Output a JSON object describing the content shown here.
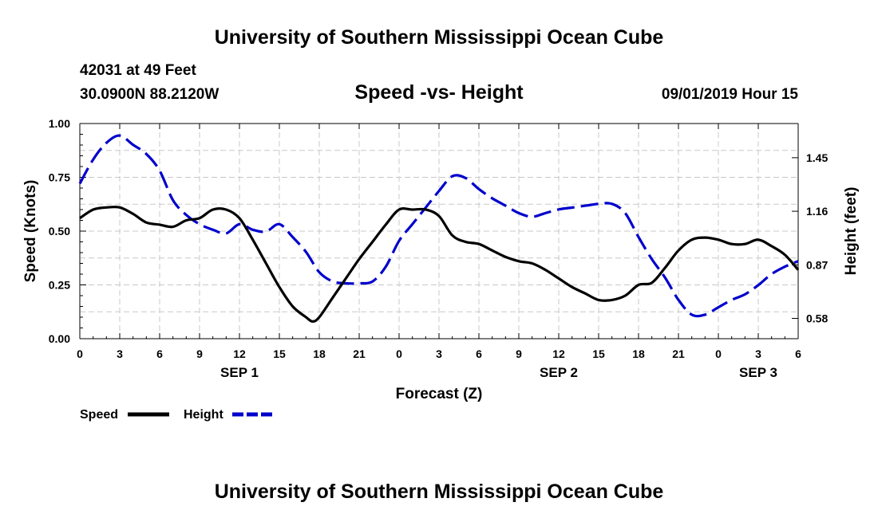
{
  "header": {
    "title": "University of Southern Mississippi Ocean Cube",
    "station_line": "42031 at 49 Feet",
    "location_line": "30.0900N 88.2120W",
    "date_line": "09/01/2019 Hour 15",
    "footer_title": "University of Southern Mississippi Ocean Cube"
  },
  "chart_data": {
    "type": "line",
    "title": "Speed -vs- Height",
    "xlabel": "Forecast (Z)",
    "ylabel": "Speed (Knots)",
    "y2label": "Height (feet)",
    "x_ticks": [
      "0",
      "3",
      "6",
      "9",
      "12",
      "15",
      "18",
      "21",
      "0",
      "3",
      "6",
      "9",
      "12",
      "15",
      "18",
      "21",
      "0",
      "3",
      "6"
    ],
    "x_range_hours": [
      0,
      54
    ],
    "day_labels": [
      {
        "label": "SEP 1",
        "hour": 12
      },
      {
        "label": "SEP 2",
        "hour": 36
      },
      {
        "label": "SEP 3",
        "hour": 51
      }
    ],
    "ylim": [
      0,
      1
    ],
    "y_ticks": [
      "0.00",
      "0.25",
      "0.50",
      "0.75",
      "1.00"
    ],
    "y_tick_values": [
      0,
      0.25,
      0.5,
      0.75,
      1.0
    ],
    "y2lim": [
      0.47,
      1.635
    ],
    "y2_ticks": [
      "0.58",
      "0.87",
      "1.16",
      "1.45"
    ],
    "y2_tick_values": [
      0.58,
      0.87,
      1.16,
      1.45
    ],
    "grid": true,
    "series": [
      {
        "name": "Speed",
        "axis": "left",
        "color": "#000000",
        "style": "solid",
        "x": [
          0,
          1,
          2,
          3,
          4,
          5,
          6,
          7,
          8,
          9,
          10,
          11,
          12,
          13,
          14,
          15,
          16,
          17,
          17.5,
          18,
          19,
          20,
          21,
          22,
          23,
          24,
          25,
          26,
          27,
          28,
          29,
          30,
          31,
          32,
          33,
          34,
          35,
          36,
          37,
          38,
          39,
          40,
          41,
          42,
          43,
          44,
          45,
          46,
          47,
          48,
          49,
          50,
          51,
          52,
          53,
          54
        ],
        "values": [
          0.56,
          0.6,
          0.61,
          0.61,
          0.58,
          0.54,
          0.53,
          0.52,
          0.55,
          0.56,
          0.6,
          0.6,
          0.56,
          0.46,
          0.35,
          0.24,
          0.15,
          0.1,
          0.08,
          0.1,
          0.19,
          0.28,
          0.37,
          0.45,
          0.53,
          0.6,
          0.6,
          0.6,
          0.57,
          0.48,
          0.45,
          0.44,
          0.41,
          0.38,
          0.36,
          0.35,
          0.32,
          0.28,
          0.24,
          0.21,
          0.18,
          0.18,
          0.2,
          0.25,
          0.26,
          0.33,
          0.41,
          0.46,
          0.47,
          0.46,
          0.44,
          0.44,
          0.46,
          0.43,
          0.39,
          0.32
        ]
      },
      {
        "name": "Height",
        "axis": "right",
        "color": "#0000cc",
        "style": "dashed",
        "x": [
          0,
          1,
          2,
          3,
          4,
          5,
          6,
          7,
          8,
          9,
          10,
          11,
          12,
          13,
          14,
          15,
          16,
          17,
          18,
          19,
          20,
          21,
          22,
          23,
          24,
          25,
          26,
          27,
          28,
          29,
          30,
          31,
          32,
          33,
          34,
          35,
          36,
          37,
          38,
          39,
          40,
          41,
          42,
          43,
          44,
          45,
          46,
          47,
          48,
          49,
          50,
          51,
          52,
          53,
          54
        ],
        "values": [
          1.31,
          1.44,
          1.53,
          1.57,
          1.52,
          1.47,
          1.38,
          1.22,
          1.14,
          1.09,
          1.06,
          1.04,
          1.09,
          1.06,
          1.05,
          1.09,
          1.02,
          0.94,
          0.83,
          0.78,
          0.77,
          0.77,
          0.78,
          0.86,
          1.0,
          1.09,
          1.18,
          1.27,
          1.35,
          1.34,
          1.28,
          1.23,
          1.19,
          1.15,
          1.13,
          1.15,
          1.17,
          1.18,
          1.19,
          1.2,
          1.2,
          1.15,
          1.02,
          0.9,
          0.8,
          0.68,
          0.6,
          0.6,
          0.64,
          0.68,
          0.71,
          0.76,
          0.82,
          0.86,
          0.89
        ]
      }
    ],
    "legend": [
      {
        "label": "Speed",
        "color": "#000000",
        "style": "solid"
      },
      {
        "label": "Height",
        "color": "#0000cc",
        "style": "dashed"
      }
    ]
  }
}
